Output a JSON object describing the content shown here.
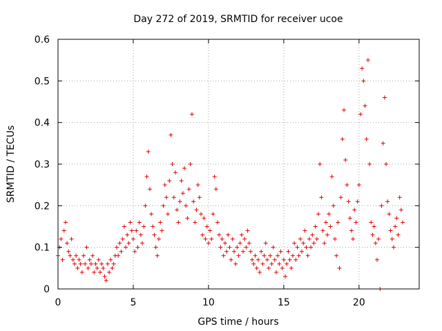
{
  "chart_data": {
    "type": "scatter",
    "title": "Day 272 of 2019, SRMTID for receiver ucoe",
    "xlabel": "GPS time / hours",
    "ylabel": "SRMTID / TECUs",
    "xlim": [
      0,
      24
    ],
    "ylim": [
      0,
      0.6
    ],
    "xticks": [
      0,
      5,
      10,
      15,
      20
    ],
    "xtick_labels": [
      "0",
      "5",
      "10",
      "15",
      "20"
    ],
    "yticks": [
      0,
      0.1,
      0.2,
      0.3,
      0.4,
      0.5,
      0.6
    ],
    "ytick_labels": [
      "0",
      "0.1",
      "0.2",
      "0.3",
      "0.4",
      "0.5",
      "0.6"
    ],
    "grid": true,
    "marker": "+",
    "color": "#e00000",
    "series": [
      {
        "name": "SRMTID",
        "points": [
          [
            0.0,
            0.08
          ],
          [
            0.1,
            0.1
          ],
          [
            0.2,
            0.12
          ],
          [
            0.3,
            0.07
          ],
          [
            0.4,
            0.14
          ],
          [
            0.5,
            0.16
          ],
          [
            0.6,
            0.11
          ],
          [
            0.7,
            0.09
          ],
          [
            0.8,
            0.08
          ],
          [
            0.9,
            0.12
          ],
          [
            1.0,
            0.07
          ],
          [
            1.1,
            0.06
          ],
          [
            1.2,
            0.08
          ],
          [
            1.3,
            0.05
          ],
          [
            1.4,
            0.07
          ],
          [
            1.5,
            0.06
          ],
          [
            1.6,
            0.04
          ],
          [
            1.7,
            0.08
          ],
          [
            1.8,
            0.06
          ],
          [
            1.9,
            0.1
          ],
          [
            2.0,
            0.05
          ],
          [
            2.1,
            0.07
          ],
          [
            2.2,
            0.06
          ],
          [
            2.3,
            0.08
          ],
          [
            2.4,
            0.04
          ],
          [
            2.5,
            0.06
          ],
          [
            2.6,
            0.05
          ],
          [
            2.7,
            0.07
          ],
          [
            2.8,
            0.04
          ],
          [
            2.9,
            0.06
          ],
          [
            3.0,
            0.05
          ],
          [
            3.1,
            0.03
          ],
          [
            3.2,
            0.02
          ],
          [
            3.3,
            0.06
          ],
          [
            3.4,
            0.04
          ],
          [
            3.5,
            0.07
          ],
          [
            3.6,
            0.05
          ],
          [
            3.7,
            0.06
          ],
          [
            3.8,
            0.08
          ],
          [
            3.9,
            0.1
          ],
          [
            4.0,
            0.08
          ],
          [
            4.1,
            0.11
          ],
          [
            4.2,
            0.09
          ],
          [
            4.3,
            0.12
          ],
          [
            4.4,
            0.15
          ],
          [
            4.5,
            0.1
          ],
          [
            4.6,
            0.13
          ],
          [
            4.7,
            0.11
          ],
          [
            4.8,
            0.16
          ],
          [
            4.9,
            0.14
          ],
          [
            5.0,
            0.12
          ],
          [
            5.1,
            0.09
          ],
          [
            5.2,
            0.14
          ],
          [
            5.3,
            0.1
          ],
          [
            5.4,
            0.16
          ],
          [
            5.5,
            0.13
          ],
          [
            5.6,
            0.11
          ],
          [
            5.7,
            0.15
          ],
          [
            5.8,
            0.2
          ],
          [
            5.9,
            0.27
          ],
          [
            6.0,
            0.33
          ],
          [
            6.1,
            0.24
          ],
          [
            6.2,
            0.18
          ],
          [
            6.3,
            0.15
          ],
          [
            6.4,
            0.13
          ],
          [
            6.5,
            0.1
          ],
          [
            6.6,
            0.08
          ],
          [
            6.7,
            0.12
          ],
          [
            6.8,
            0.16
          ],
          [
            6.9,
            0.14
          ],
          [
            7.0,
            0.2
          ],
          [
            7.1,
            0.25
          ],
          [
            7.2,
            0.22
          ],
          [
            7.3,
            0.18
          ],
          [
            7.4,
            0.26
          ],
          [
            7.5,
            0.37
          ],
          [
            7.6,
            0.3
          ],
          [
            7.7,
            0.22
          ],
          [
            7.8,
            0.28
          ],
          [
            7.9,
            0.19
          ],
          [
            8.0,
            0.16
          ],
          [
            8.1,
            0.21
          ],
          [
            8.2,
            0.26
          ],
          [
            8.3,
            0.23
          ],
          [
            8.4,
            0.29
          ],
          [
            8.5,
            0.2
          ],
          [
            8.6,
            0.17
          ],
          [
            8.7,
            0.24
          ],
          [
            8.8,
            0.3
          ],
          [
            8.9,
            0.42
          ],
          [
            9.0,
            0.21
          ],
          [
            9.1,
            0.16
          ],
          [
            9.2,
            0.19
          ],
          [
            9.3,
            0.25
          ],
          [
            9.4,
            0.22
          ],
          [
            9.5,
            0.18
          ],
          [
            9.6,
            0.13
          ],
          [
            9.7,
            0.17
          ],
          [
            9.8,
            0.12
          ],
          [
            9.9,
            0.15
          ],
          [
            10.0,
            0.11
          ],
          [
            10.1,
            0.14
          ],
          [
            10.2,
            0.12
          ],
          [
            10.3,
            0.18
          ],
          [
            10.4,
            0.27
          ],
          [
            10.5,
            0.24
          ],
          [
            10.6,
            0.16
          ],
          [
            10.7,
            0.13
          ],
          [
            10.8,
            0.1
          ],
          [
            10.9,
            0.12
          ],
          [
            11.0,
            0.08
          ],
          [
            11.1,
            0.11
          ],
          [
            11.2,
            0.09
          ],
          [
            11.3,
            0.13
          ],
          [
            11.4,
            0.1
          ],
          [
            11.5,
            0.07
          ],
          [
            11.6,
            0.12
          ],
          [
            11.7,
            0.09
          ],
          [
            11.8,
            0.06
          ],
          [
            11.9,
            0.1
          ],
          [
            12.0,
            0.08
          ],
          [
            12.1,
            0.11
          ],
          [
            12.2,
            0.13
          ],
          [
            12.3,
            0.09
          ],
          [
            12.4,
            0.12
          ],
          [
            12.5,
            0.1
          ],
          [
            12.6,
            0.14
          ],
          [
            12.7,
            0.11
          ],
          [
            12.8,
            0.09
          ],
          [
            12.9,
            0.07
          ],
          [
            13.0,
            0.06
          ],
          [
            13.1,
            0.08
          ],
          [
            13.2,
            0.05
          ],
          [
            13.3,
            0.07
          ],
          [
            13.4,
            0.04
          ],
          [
            13.5,
            0.09
          ],
          [
            13.6,
            0.06
          ],
          [
            13.7,
            0.08
          ],
          [
            13.8,
            0.11
          ],
          [
            13.9,
            0.07
          ],
          [
            14.0,
            0.05
          ],
          [
            14.1,
            0.08
          ],
          [
            14.2,
            0.06
          ],
          [
            14.3,
            0.1
          ],
          [
            14.4,
            0.07
          ],
          [
            14.5,
            0.04
          ],
          [
            14.6,
            0.08
          ],
          [
            14.7,
            0.06
          ],
          [
            14.8,
            0.09
          ],
          [
            14.9,
            0.05
          ],
          [
            15.0,
            0.07
          ],
          [
            15.1,
            0.03
          ],
          [
            15.2,
            0.06
          ],
          [
            15.3,
            0.09
          ],
          [
            15.4,
            0.07
          ],
          [
            15.5,
            0.05
          ],
          [
            15.6,
            0.08
          ],
          [
            15.7,
            0.11
          ],
          [
            15.8,
            0.07
          ],
          [
            15.9,
            0.1
          ],
          [
            16.0,
            0.08
          ],
          [
            16.1,
            0.12
          ],
          [
            16.2,
            0.09
          ],
          [
            16.3,
            0.11
          ],
          [
            16.4,
            0.14
          ],
          [
            16.5,
            0.1
          ],
          [
            16.6,
            0.08
          ],
          [
            16.7,
            0.12
          ],
          [
            16.8,
            0.1
          ],
          [
            16.9,
            0.13
          ],
          [
            17.0,
            0.11
          ],
          [
            17.1,
            0.15
          ],
          [
            17.2,
            0.12
          ],
          [
            17.3,
            0.18
          ],
          [
            17.4,
            0.3
          ],
          [
            17.5,
            0.22
          ],
          [
            17.6,
            0.14
          ],
          [
            17.7,
            0.11
          ],
          [
            17.8,
            0.16
          ],
          [
            17.9,
            0.13
          ],
          [
            18.0,
            0.18
          ],
          [
            18.1,
            0.15
          ],
          [
            18.2,
            0.27
          ],
          [
            18.3,
            0.2
          ],
          [
            18.4,
            0.12
          ],
          [
            18.5,
            0.08
          ],
          [
            18.6,
            0.16
          ],
          [
            18.7,
            0.05
          ],
          [
            18.8,
            0.22
          ],
          [
            18.9,
            0.36
          ],
          [
            19.0,
            0.43
          ],
          [
            19.1,
            0.31
          ],
          [
            19.2,
            0.25
          ],
          [
            19.3,
            0.21
          ],
          [
            19.4,
            0.17
          ],
          [
            19.5,
            0.14
          ],
          [
            19.6,
            0.12
          ],
          [
            19.7,
            0.19
          ],
          [
            19.8,
            0.16
          ],
          [
            19.9,
            0.21
          ],
          [
            20.0,
            0.25
          ],
          [
            20.1,
            0.42
          ],
          [
            20.2,
            0.53
          ],
          [
            20.3,
            0.5
          ],
          [
            20.4,
            0.44
          ],
          [
            20.5,
            0.36
          ],
          [
            20.6,
            0.55
          ],
          [
            20.7,
            0.3
          ],
          [
            20.8,
            0.16
          ],
          [
            20.9,
            0.13
          ],
          [
            21.0,
            0.15
          ],
          [
            21.1,
            0.11
          ],
          [
            21.2,
            0.07
          ],
          [
            21.3,
            0.12
          ],
          [
            21.4,
            0.0
          ],
          [
            21.5,
            0.2
          ],
          [
            21.6,
            0.35
          ],
          [
            21.7,
            0.46
          ],
          [
            21.8,
            0.3
          ],
          [
            21.9,
            0.21
          ],
          [
            22.0,
            0.18
          ],
          [
            22.1,
            0.14
          ],
          [
            22.2,
            0.12
          ],
          [
            22.3,
            0.1
          ],
          [
            22.4,
            0.15
          ],
          [
            22.5,
            0.17
          ],
          [
            22.6,
            0.13
          ],
          [
            22.7,
            0.22
          ],
          [
            22.8,
            0.19
          ],
          [
            22.9,
            0.16
          ]
        ]
      }
    ]
  }
}
